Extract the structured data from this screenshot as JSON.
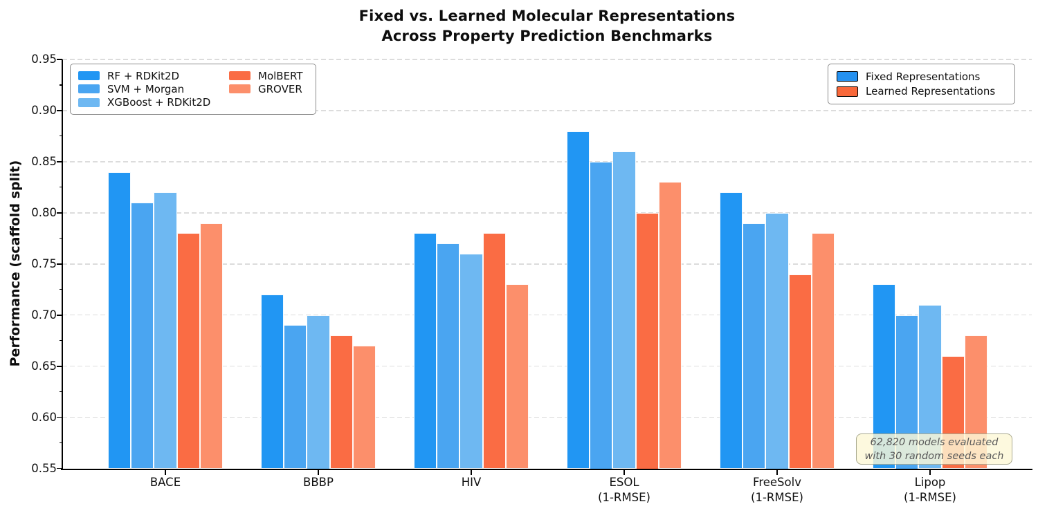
{
  "figure": {
    "title_line1": "Fixed vs. Learned Molecular Representations",
    "title_line2": "Across Property Prediction Benchmarks",
    "ylabel": "Performance (scaffold split)",
    "annotation_line1": "62,820 models evaluated",
    "annotation_line2": "with 30 random seeds each"
  },
  "chart_data": {
    "type": "bar",
    "title": "Fixed vs. Learned Molecular Representations Across Property Prediction Benchmarks",
    "xlabel": "",
    "ylabel": "Performance (scaffold split)",
    "ylim": [
      0.55,
      0.95
    ],
    "grid": "horizontal dashed",
    "categories": [
      "BACE",
      "BBBP",
      "HIV",
      "ESOL (1-RMSE)",
      "FreeSolv (1-RMSE)",
      "Lipop (1-RMSE)"
    ],
    "category_labels": [
      [
        "BACE"
      ],
      [
        "BBBP"
      ],
      [
        "HIV"
      ],
      [
        "ESOL",
        "(1-RMSE)"
      ],
      [
        "FreeSolv",
        "(1-RMSE)"
      ],
      [
        "Lipop",
        "(1-RMSE)"
      ]
    ],
    "ytick_values": [
      0.95,
      0.9,
      0.85,
      0.8,
      0.75,
      0.7,
      0.65,
      0.6,
      0.55
    ],
    "ytick_labels": [
      "0.95",
      "0.90",
      "0.85",
      "0.80",
      "0.75",
      "0.70",
      "0.65",
      "0.60",
      "0.55"
    ],
    "series": [
      {
        "name": "RF + RDKit2D",
        "group": "Fixed",
        "color": "#2196f3",
        "values": [
          0.84,
          0.72,
          0.78,
          0.88,
          0.82,
          0.73
        ]
      },
      {
        "name": "SVM + Morgan",
        "group": "Fixed",
        "color": "#4aa5f1",
        "values": [
          0.81,
          0.69,
          0.77,
          0.85,
          0.79,
          0.7
        ]
      },
      {
        "name": "XGBoost + RDKit2D",
        "group": "Fixed",
        "color": "#6eb8f2",
        "values": [
          0.82,
          0.7,
          0.76,
          0.86,
          0.8,
          0.71
        ]
      },
      {
        "name": "MolBERT",
        "group": "Learned",
        "color": "#fa6c44",
        "values": [
          0.78,
          0.68,
          0.78,
          0.8,
          0.74,
          0.66
        ]
      },
      {
        "name": "GROVER",
        "group": "Learned",
        "color": "#fc8f6b",
        "values": [
          0.79,
          0.67,
          0.73,
          0.83,
          0.78,
          0.68
        ]
      }
    ],
    "legend_models": {
      "position": "upper left",
      "items": [
        {
          "label": "RF + RDKit2D",
          "color": "#2196f3"
        },
        {
          "label": "SVM + Morgan",
          "color": "#4aa5f1"
        },
        {
          "label": "XGBoost + RDKit2D",
          "color": "#6eb8f2"
        },
        {
          "label": "MolBERT",
          "color": "#fa6c44"
        },
        {
          "label": "GROVER",
          "color": "#fc8f6b"
        }
      ]
    },
    "legend_groups": {
      "position": "upper right",
      "items": [
        {
          "label": "Fixed Representations",
          "color": "#2591f0"
        },
        {
          "label": "Learned Representations",
          "color": "#f8683a"
        }
      ]
    },
    "annotation": "62,820 models evaluated with 30 random seeds each"
  }
}
